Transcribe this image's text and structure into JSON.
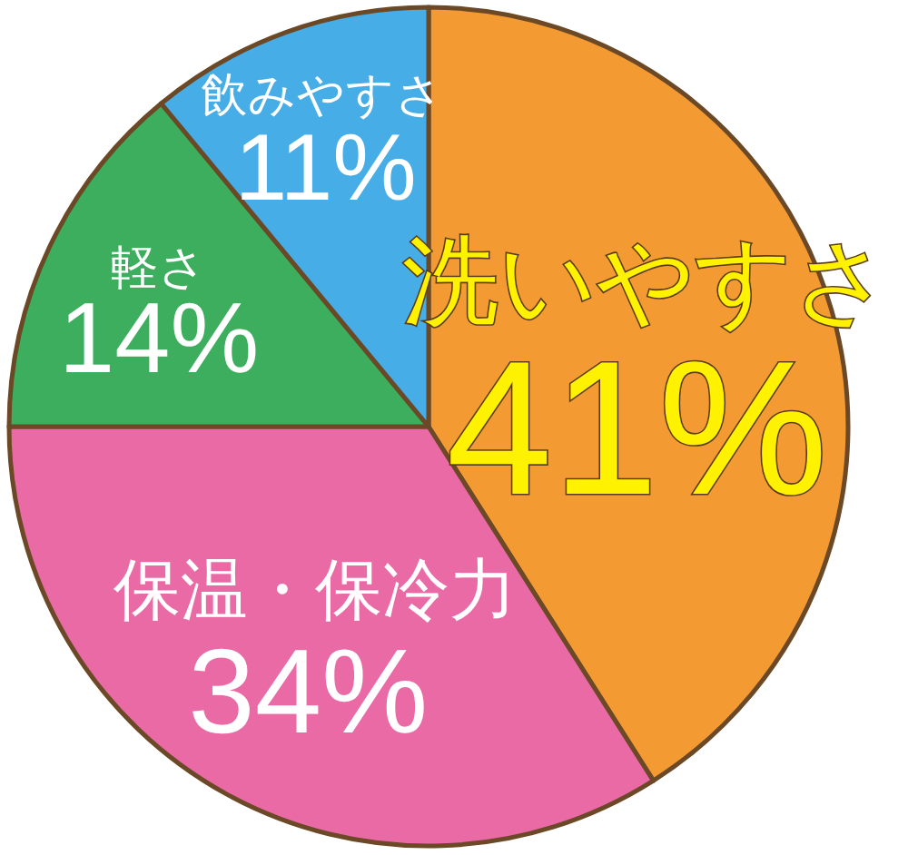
{
  "chart_data": {
    "type": "pie",
    "categories": [
      "洗いやすさ",
      "保温・保冷力",
      "軽さ",
      "飲みやすさ"
    ],
    "values": [
      41,
      34,
      14,
      11
    ],
    "colors": [
      "#f49a33",
      "#ea6aa6",
      "#3cae5e",
      "#46ade6"
    ],
    "value_labels": [
      "41%",
      "34%",
      "14%",
      "11%"
    ]
  }
}
